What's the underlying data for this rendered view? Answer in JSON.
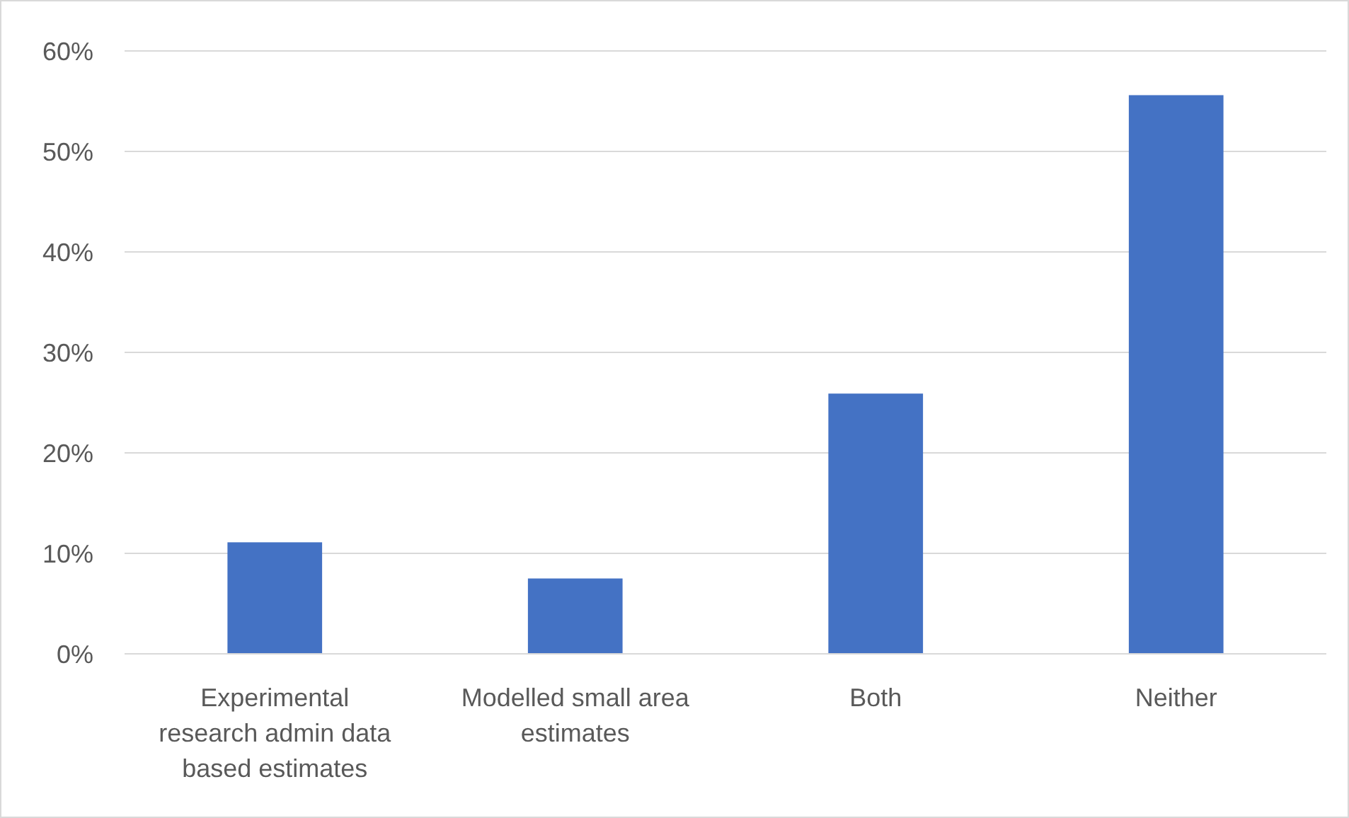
{
  "chart_data": {
    "type": "bar",
    "categories": [
      "Experimental research admin data based estimates",
      "Modelled small area estimates",
      "Both",
      "Neither"
    ],
    "values": [
      11.1,
      7.5,
      25.9,
      55.6
    ],
    "color": "#4472c4",
    "ylim": [
      0,
      60
    ],
    "yticks": [
      {
        "value": 0,
        "label": "0%"
      },
      {
        "value": 10,
        "label": "10%"
      },
      {
        "value": 20,
        "label": "20%"
      },
      {
        "value": 30,
        "label": "30%"
      },
      {
        "value": 40,
        "label": "40%"
      },
      {
        "value": 50,
        "label": "50%"
      },
      {
        "value": 60,
        "label": "60%"
      }
    ],
    "grid": "y"
  }
}
